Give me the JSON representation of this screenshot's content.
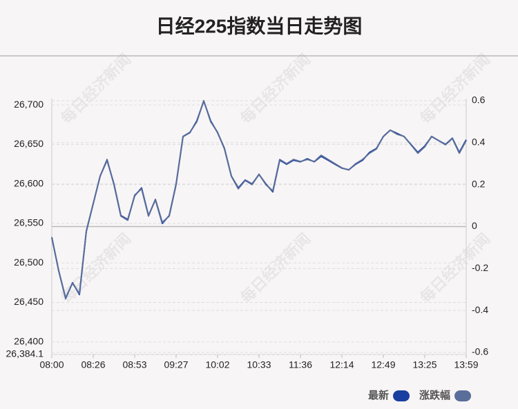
{
  "chart_data": {
    "type": "line",
    "title": "日经225指数当日走势图",
    "watermark": "每日经济新闻",
    "categories": [
      "08:00",
      null,
      null,
      null,
      null,
      null,
      "08:26",
      null,
      null,
      null,
      null,
      null,
      "08:53",
      null,
      null,
      null,
      null,
      null,
      "09:27",
      null,
      null,
      null,
      null,
      null,
      "10:02",
      null,
      null,
      null,
      null,
      null,
      "10:33",
      null,
      null,
      null,
      null,
      null,
      "11:36",
      null,
      null,
      null,
      null,
      null,
      "12:14",
      null,
      null,
      null,
      null,
      null,
      "12:49",
      null,
      null,
      null,
      null,
      null,
      "13:25",
      null,
      null,
      null,
      null,
      null,
      "13:59"
    ],
    "series": [
      {
        "name": "最新",
        "color": "#1a3fa0",
        "values": [
          26532,
          26490,
          26455,
          26475,
          26460,
          26540,
          26575,
          26610,
          26630,
          26600,
          26560,
          26555,
          26585,
          26595,
          26560,
          26580,
          26550,
          26560,
          26600,
          26660,
          26665,
          26680,
          26705,
          26680,
          26665,
          26645,
          26610,
          26595,
          26605,
          26600,
          26612,
          26600,
          26590,
          26630,
          26625,
          26630,
          26628,
          26632,
          26628,
          26635,
          26630,
          26625,
          26620,
          26618,
          26625,
          26630,
          26640,
          26645,
          26660,
          26668,
          26664,
          26660,
          26650,
          26640,
          26648,
          26660,
          26655,
          26650,
          26658,
          26640,
          26656
        ]
      },
      {
        "name": "涨跌幅",
        "color": "#5a6e9a",
        "axis": "y2",
        "values": [
          -0.05,
          -0.21,
          -0.34,
          -0.27,
          -0.32,
          -0.02,
          0.11,
          0.24,
          0.32,
          0.2,
          0.05,
          0.03,
          0.15,
          0.18,
          0.05,
          0.13,
          0.02,
          0.05,
          0.2,
          0.43,
          0.45,
          0.5,
          0.6,
          0.5,
          0.45,
          0.37,
          0.24,
          0.18,
          0.22,
          0.2,
          0.25,
          0.2,
          0.17,
          0.32,
          0.3,
          0.32,
          0.31,
          0.32,
          0.31,
          0.34,
          0.32,
          0.3,
          0.28,
          0.27,
          0.3,
          0.32,
          0.35,
          0.37,
          0.43,
          0.46,
          0.44,
          0.43,
          0.39,
          0.35,
          0.38,
          0.43,
          0.41,
          0.39,
          0.42,
          0.35,
          0.41
        ]
      }
    ],
    "ylim": [
      26384.1,
      26708
    ],
    "yticks": [
      {
        "value": 26384.1,
        "label": "26,384.1"
      },
      {
        "value": 26400,
        "label": "26,400"
      },
      {
        "value": 26450,
        "label": "26,450"
      },
      {
        "value": 26500,
        "label": "26,500"
      },
      {
        "value": 26550,
        "label": "26,550"
      },
      {
        "value": 26600,
        "label": "26,600"
      },
      {
        "value": 26650,
        "label": "26,650"
      },
      {
        "value": 26700,
        "label": "26,700"
      }
    ],
    "y2lim": [
      -0.61,
      0.61
    ],
    "y2ticks": [
      -0.6,
      -0.4,
      -0.2,
      0,
      0.2,
      0.4,
      0.6
    ],
    "grid": true
  }
}
